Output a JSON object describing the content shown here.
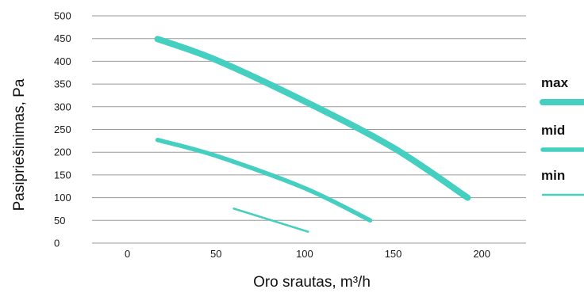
{
  "chart_data": {
    "type": "line",
    "xlabel": "Oro srautas, m³/h",
    "ylabel": "Pasipriešinimas, Pa",
    "xlim": [
      -20,
      225
    ],
    "ylim": [
      0,
      500
    ],
    "x_ticks": [
      0,
      50,
      100,
      150,
      200
    ],
    "y_ticks": [
      0,
      50,
      100,
      150,
      200,
      250,
      300,
      350,
      400,
      450,
      500
    ],
    "grid": "horizontal",
    "legend_position": "right",
    "series": [
      {
        "name": "max",
        "color": "#45cfc0",
        "x": [
          17,
          50,
          100,
          150,
          192
        ],
        "values": [
          449,
          403,
          312,
          210,
          100
        ]
      },
      {
        "name": "mid",
        "color": "#45cfc0",
        "x": [
          17,
          50,
          100,
          137
        ],
        "values": [
          227,
          192,
          121,
          50
        ]
      },
      {
        "name": "min",
        "color": "#45cfc0",
        "x": [
          60,
          102
        ],
        "values": [
          76,
          25
        ]
      }
    ]
  }
}
